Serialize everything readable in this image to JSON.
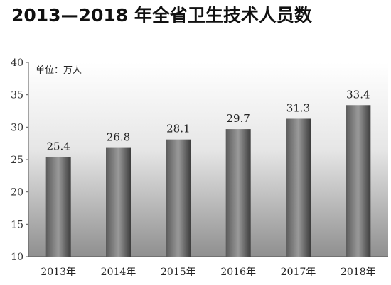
{
  "chart_data": {
    "type": "bar",
    "title": "2013—2018 年全省卫生技术人员数",
    "unit": "单位：万人",
    "categories": [
      "2013年",
      "2014年",
      "2015年",
      "2016年",
      "2017年",
      "2018年"
    ],
    "values": [
      25.4,
      26.8,
      28.1,
      29.7,
      31.3,
      33.4
    ],
    "value_labels": [
      "25.4",
      "26.8",
      "28.1",
      "29.7",
      "31.3",
      "33.4"
    ],
    "ylim": [
      10,
      40
    ],
    "yticks": [
      10,
      15,
      20,
      25,
      30,
      35,
      40
    ],
    "xlabel": "",
    "ylabel": "",
    "grid": false,
    "legend": "none"
  }
}
